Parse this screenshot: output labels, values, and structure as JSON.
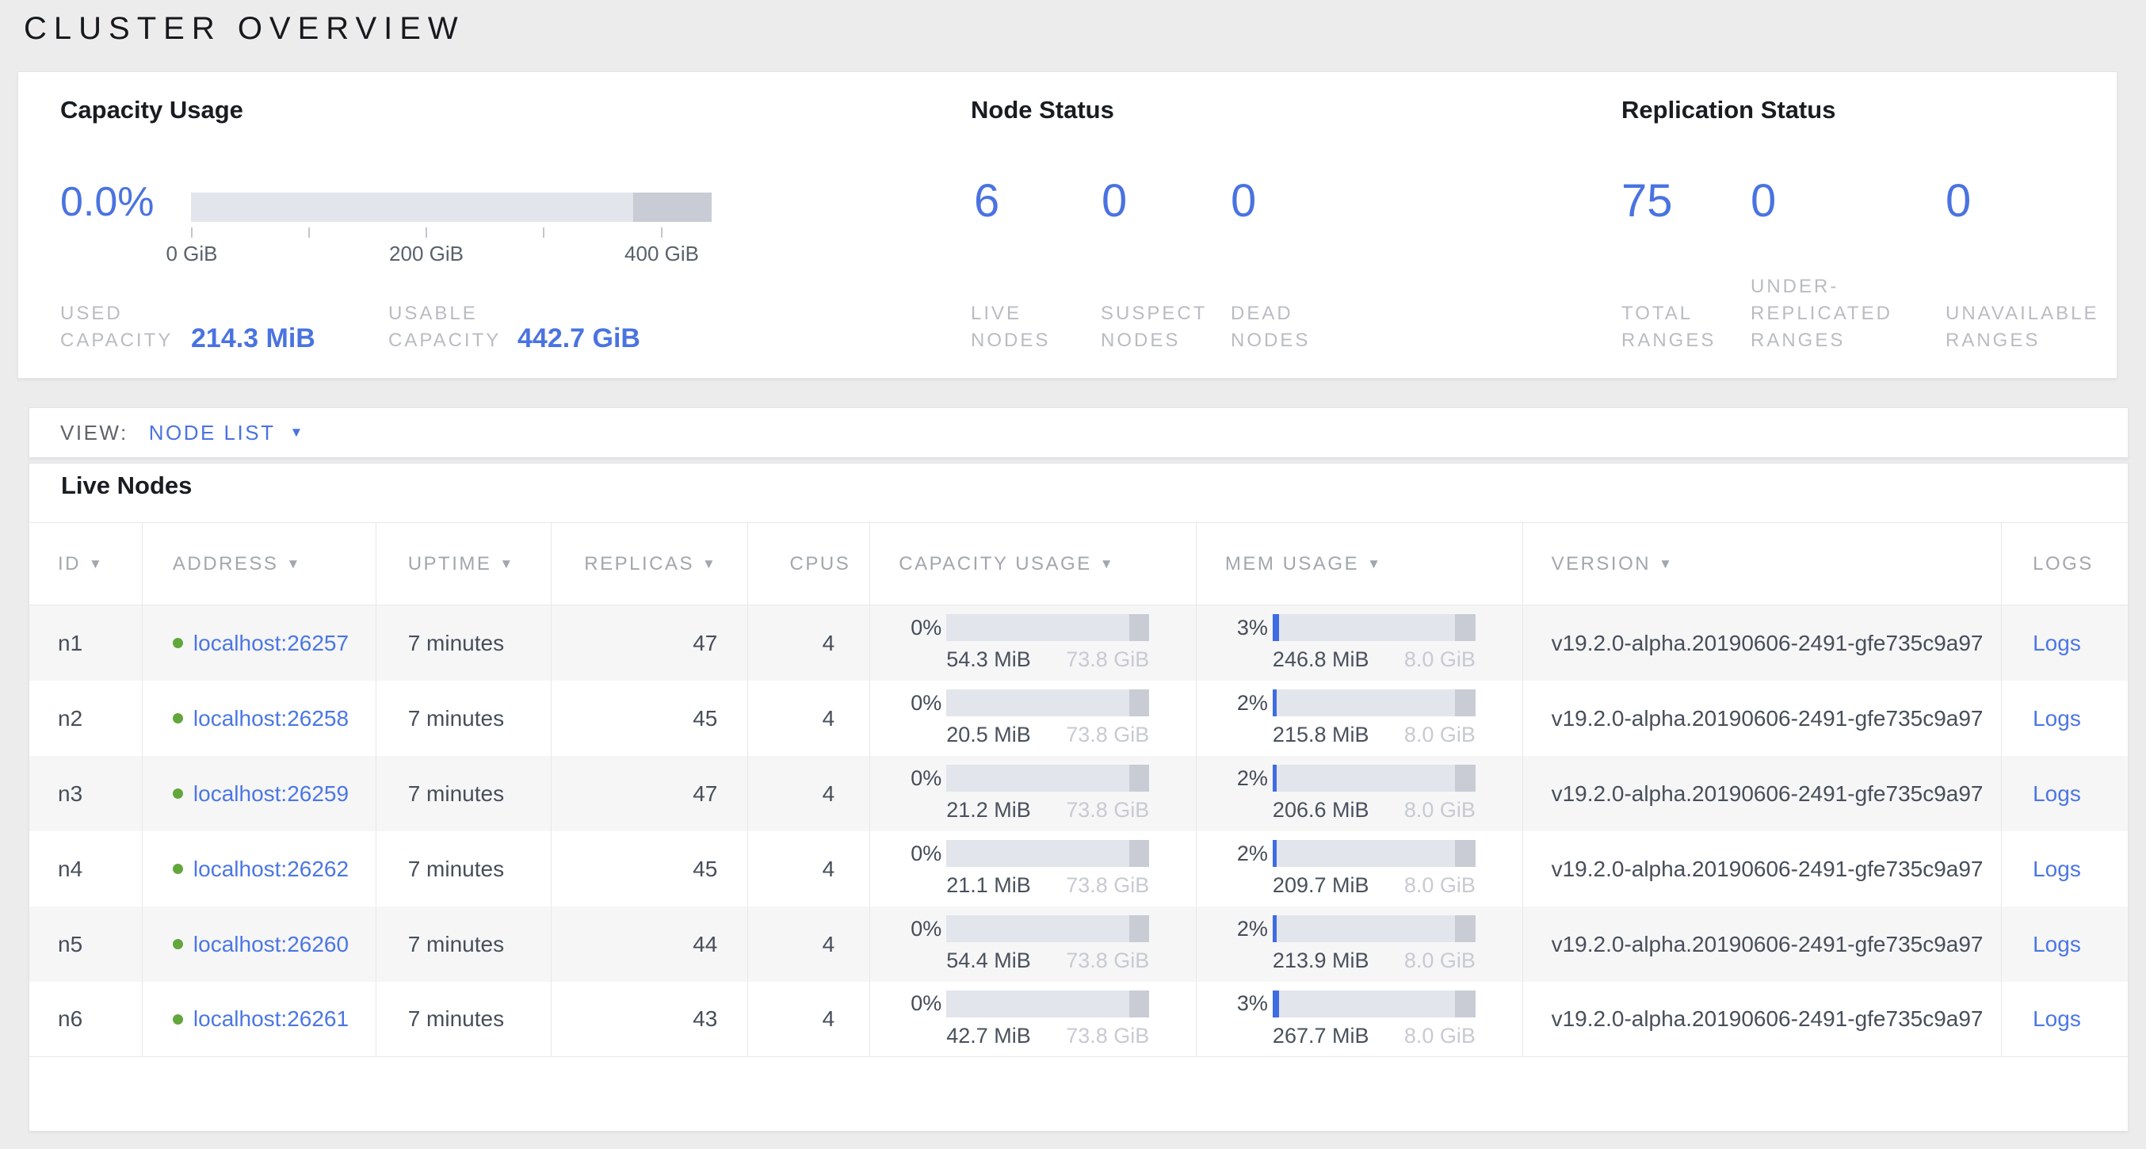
{
  "page": {
    "title": "CLUSTER OVERVIEW"
  },
  "colors": {
    "accent_blue": "#4a73e1",
    "live_green": "#62a63c",
    "mem_used_blue": "#3e6ce2",
    "bar_track": "#e3e5ec",
    "bar_reserve": "#c9ccd4"
  },
  "capacity_usage": {
    "heading": "Capacity Usage",
    "percent": "0.0%",
    "axis_ticks": [
      "0 GiB",
      "200 GiB",
      "400 GiB"
    ],
    "used": {
      "label_line1": "USED",
      "label_line2": "CAPACITY",
      "value": "214.3 MiB"
    },
    "usable": {
      "label_line1": "USABLE",
      "label_line2": "CAPACITY",
      "value": "442.7 GiB"
    }
  },
  "node_status": {
    "heading": "Node Status",
    "stats": [
      {
        "value": "6",
        "label": [
          "LIVE",
          "NODES"
        ]
      },
      {
        "value": "0",
        "label": [
          "SUSPECT",
          "NODES"
        ]
      },
      {
        "value": "0",
        "label": [
          "DEAD",
          "NODES"
        ]
      }
    ]
  },
  "replication_status": {
    "heading": "Replication Status",
    "stats": [
      {
        "value": "75",
        "label": [
          "TOTAL",
          "RANGES"
        ]
      },
      {
        "value": "0",
        "label": [
          "UNDER-",
          "REPLICATED",
          "RANGES"
        ]
      },
      {
        "value": "0",
        "label": [
          "UNAVAILABLE",
          "RANGES"
        ]
      }
    ]
  },
  "view_bar": {
    "label": "VIEW:",
    "selected": "NODE LIST",
    "caret_icon": "▼"
  },
  "live_nodes": {
    "heading": "Live Nodes",
    "sort_icon": "▼",
    "columns": [
      {
        "label": "ID",
        "sortable": true
      },
      {
        "label": "ADDRESS",
        "sortable": true
      },
      {
        "label": "UPTIME",
        "sortable": true
      },
      {
        "label": "REPLICAS",
        "sortable": true
      },
      {
        "label": "CPUS",
        "sortable": false
      },
      {
        "label": "CAPACITY USAGE",
        "sortable": true
      },
      {
        "label": "MEM USAGE",
        "sortable": true
      },
      {
        "label": "VERSION",
        "sortable": true
      },
      {
        "label": "LOGS",
        "sortable": false
      }
    ],
    "rows": [
      {
        "id": "n1",
        "address": "localhost:26257",
        "status": "live",
        "uptime": "7 minutes",
        "replicas": "47",
        "cpus": "4",
        "capacity": {
          "pct": "0%",
          "pct_num": 0,
          "used": "54.3 MiB",
          "max": "73.8 GiB"
        },
        "mem": {
          "pct": "3%",
          "pct_num": 3,
          "used": "246.8 MiB",
          "max": "8.0 GiB"
        },
        "version": "v19.2.0-alpha.20190606-2491-gfe735c9a97",
        "logs_label": "Logs"
      },
      {
        "id": "n2",
        "address": "localhost:26258",
        "status": "live",
        "uptime": "7 minutes",
        "replicas": "45",
        "cpus": "4",
        "capacity": {
          "pct": "0%",
          "pct_num": 0,
          "used": "20.5 MiB",
          "max": "73.8 GiB"
        },
        "mem": {
          "pct": "2%",
          "pct_num": 2,
          "used": "215.8 MiB",
          "max": "8.0 GiB"
        },
        "version": "v19.2.0-alpha.20190606-2491-gfe735c9a97",
        "logs_label": "Logs"
      },
      {
        "id": "n3",
        "address": "localhost:26259",
        "status": "live",
        "uptime": "7 minutes",
        "replicas": "47",
        "cpus": "4",
        "capacity": {
          "pct": "0%",
          "pct_num": 0,
          "used": "21.2 MiB",
          "max": "73.8 GiB"
        },
        "mem": {
          "pct": "2%",
          "pct_num": 2,
          "used": "206.6 MiB",
          "max": "8.0 GiB"
        },
        "version": "v19.2.0-alpha.20190606-2491-gfe735c9a97",
        "logs_label": "Logs"
      },
      {
        "id": "n4",
        "address": "localhost:26262",
        "status": "live",
        "uptime": "7 minutes",
        "replicas": "45",
        "cpus": "4",
        "capacity": {
          "pct": "0%",
          "pct_num": 0,
          "used": "21.1 MiB",
          "max": "73.8 GiB"
        },
        "mem": {
          "pct": "2%",
          "pct_num": 2,
          "used": "209.7 MiB",
          "max": "8.0 GiB"
        },
        "version": "v19.2.0-alpha.20190606-2491-gfe735c9a97",
        "logs_label": "Logs"
      },
      {
        "id": "n5",
        "address": "localhost:26260",
        "status": "live",
        "uptime": "7 minutes",
        "replicas": "44",
        "cpus": "4",
        "capacity": {
          "pct": "0%",
          "pct_num": 0,
          "used": "54.4 MiB",
          "max": "73.8 GiB"
        },
        "mem": {
          "pct": "2%",
          "pct_num": 2,
          "used": "213.9 MiB",
          "max": "8.0 GiB"
        },
        "version": "v19.2.0-alpha.20190606-2491-gfe735c9a97",
        "logs_label": "Logs"
      },
      {
        "id": "n6",
        "address": "localhost:26261",
        "status": "live",
        "uptime": "7 minutes",
        "replicas": "43",
        "cpus": "4",
        "capacity": {
          "pct": "0%",
          "pct_num": 0,
          "used": "42.7 MiB",
          "max": "73.8 GiB"
        },
        "mem": {
          "pct": "3%",
          "pct_num": 3,
          "used": "267.7 MiB",
          "max": "8.0 GiB"
        },
        "version": "v19.2.0-alpha.20190606-2491-gfe735c9a97",
        "logs_label": "Logs"
      }
    ]
  }
}
